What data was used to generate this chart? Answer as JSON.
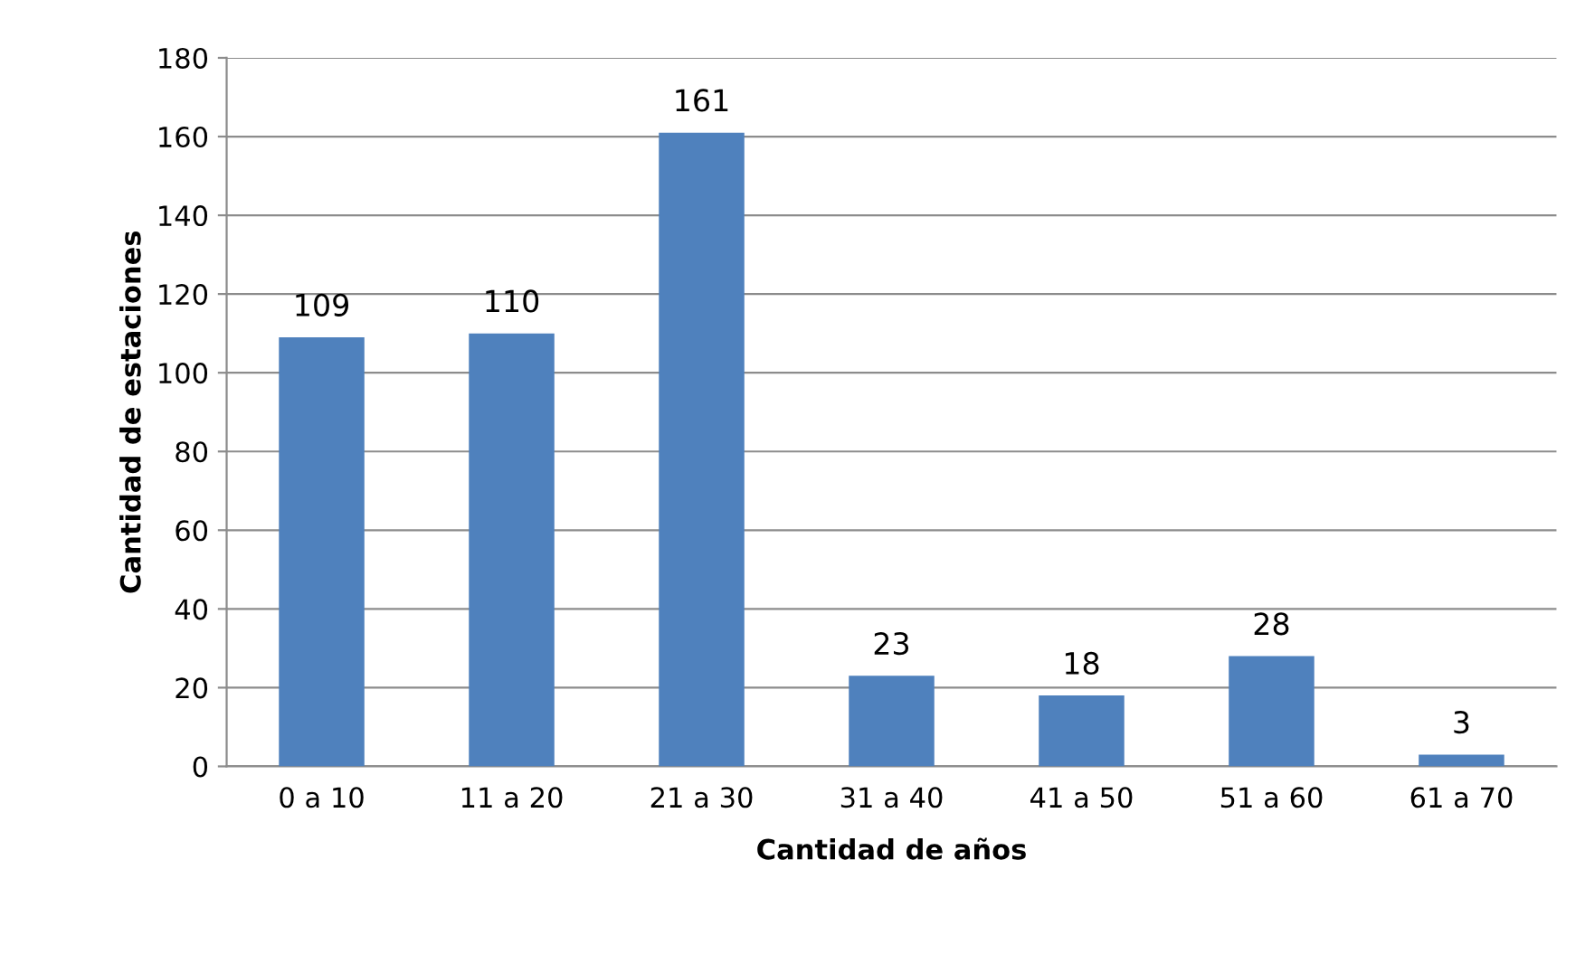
{
  "chart_data": {
    "type": "bar",
    "xlabel": "Cantidad de años",
    "ylabel": "Cantidad de estaciones",
    "categories": [
      "0 a 10",
      "11 a 20",
      "21 a 30",
      "31 a 40",
      "41 a 50",
      "51 a 60",
      "61 a 70"
    ],
    "values": [
      109,
      110,
      161,
      23,
      18,
      28,
      3
    ],
    "color": "#4f81bd",
    "ylim": [
      0,
      180
    ],
    "yticks": [
      0,
      20,
      40,
      60,
      80,
      100,
      120,
      140,
      160,
      180
    ],
    "grid": "y",
    "data_labels": true,
    "legend": false
  }
}
